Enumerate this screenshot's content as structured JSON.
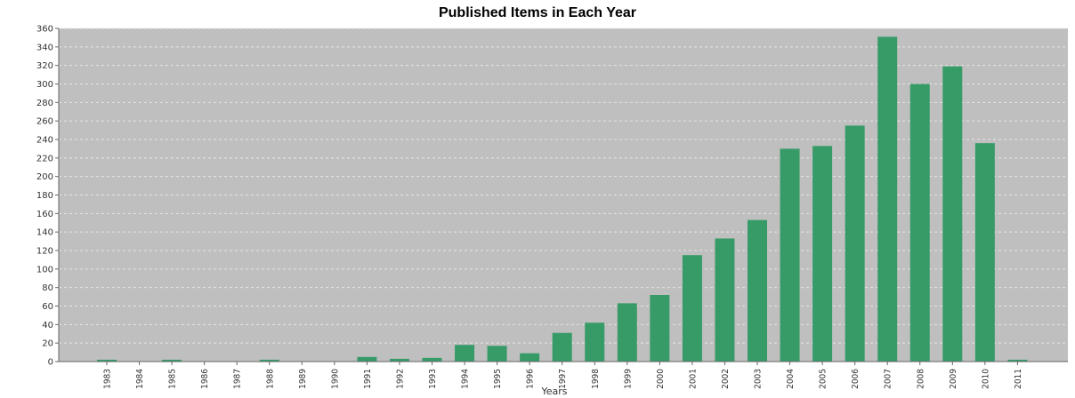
{
  "chart_data": {
    "type": "bar",
    "title": "Published Items in Each Year",
    "xlabel": "Years",
    "ylabel": "",
    "ylim": [
      0,
      360
    ],
    "y_ticks": [
      0,
      20,
      40,
      60,
      80,
      100,
      120,
      140,
      160,
      180,
      200,
      220,
      240,
      260,
      280,
      300,
      320,
      340,
      360
    ],
    "grid": true,
    "categories": [
      "1983",
      "1984",
      "1985",
      "1986",
      "1987",
      "1988",
      "1989",
      "1990",
      "1991",
      "1992",
      "1993",
      "1994",
      "1995",
      "1996",
      "1997",
      "1998",
      "1999",
      "2000",
      "2001",
      "2002",
      "2003",
      "2004",
      "2005",
      "2006",
      "2007",
      "2008",
      "2009",
      "2010",
      "2011"
    ],
    "values": [
      2,
      0,
      2,
      0,
      0,
      2,
      0,
      0,
      5,
      3,
      4,
      18,
      17,
      9,
      31,
      42,
      63,
      72,
      115,
      133,
      153,
      230,
      233,
      255,
      351,
      300,
      319,
      236,
      2
    ],
    "bar_color": "#379b68",
    "plot_background": "#bfbfbf"
  }
}
